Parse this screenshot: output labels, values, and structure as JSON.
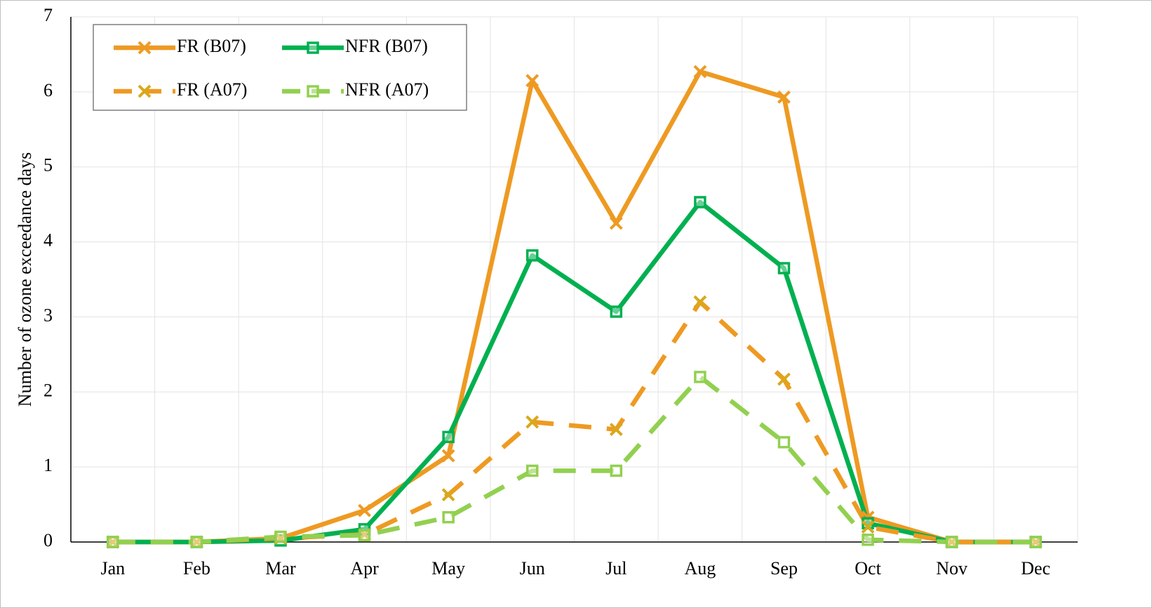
{
  "chart_data": {
    "type": "line",
    "y_label": "Number of ozone exceedance days",
    "categories": [
      "Jan",
      "Feb",
      "Mar",
      "Apr",
      "May",
      "Jun",
      "Jul",
      "Aug",
      "Sep",
      "Oct",
      "Nov",
      "Dec"
    ],
    "series": [
      {
        "name": "FR (B07)",
        "color": "#ee9a22",
        "marker_color": "#ee9a22",
        "marker": "x",
        "dash": "solid",
        "values": [
          0,
          0,
          0.05,
          0.42,
          1.15,
          6.15,
          4.25,
          6.27,
          5.93,
          0.33,
          0,
          0
        ]
      },
      {
        "name": "NFR (B07)",
        "color": "#00b050",
        "marker_color": "#00b050",
        "marker": "square",
        "dash": "solid",
        "values": [
          0,
          0,
          0.02,
          0.17,
          1.4,
          3.82,
          3.07,
          4.53,
          3.65,
          0.25,
          0,
          0
        ]
      },
      {
        "name": "FR (A07)",
        "color": "#ee9a22",
        "marker_color": "#d9a81a",
        "marker": "x",
        "dash": "dashed",
        "values": [
          0,
          0,
          0.05,
          0.1,
          0.63,
          1.6,
          1.5,
          3.2,
          2.17,
          0.2,
          0,
          0
        ]
      },
      {
        "name": "NFR (A07)",
        "color": "#92d050",
        "marker_color": "#92d050",
        "marker": "square",
        "dash": "dashed",
        "values": [
          0,
          0,
          0.07,
          0.09,
          0.33,
          0.95,
          0.95,
          2.2,
          1.33,
          0.03,
          0,
          0
        ]
      }
    ],
    "ylim": [
      0,
      7
    ],
    "yticks": [
      0,
      1,
      2,
      3,
      4,
      5,
      6,
      7
    ],
    "grid": true,
    "legend": "upper left"
  }
}
